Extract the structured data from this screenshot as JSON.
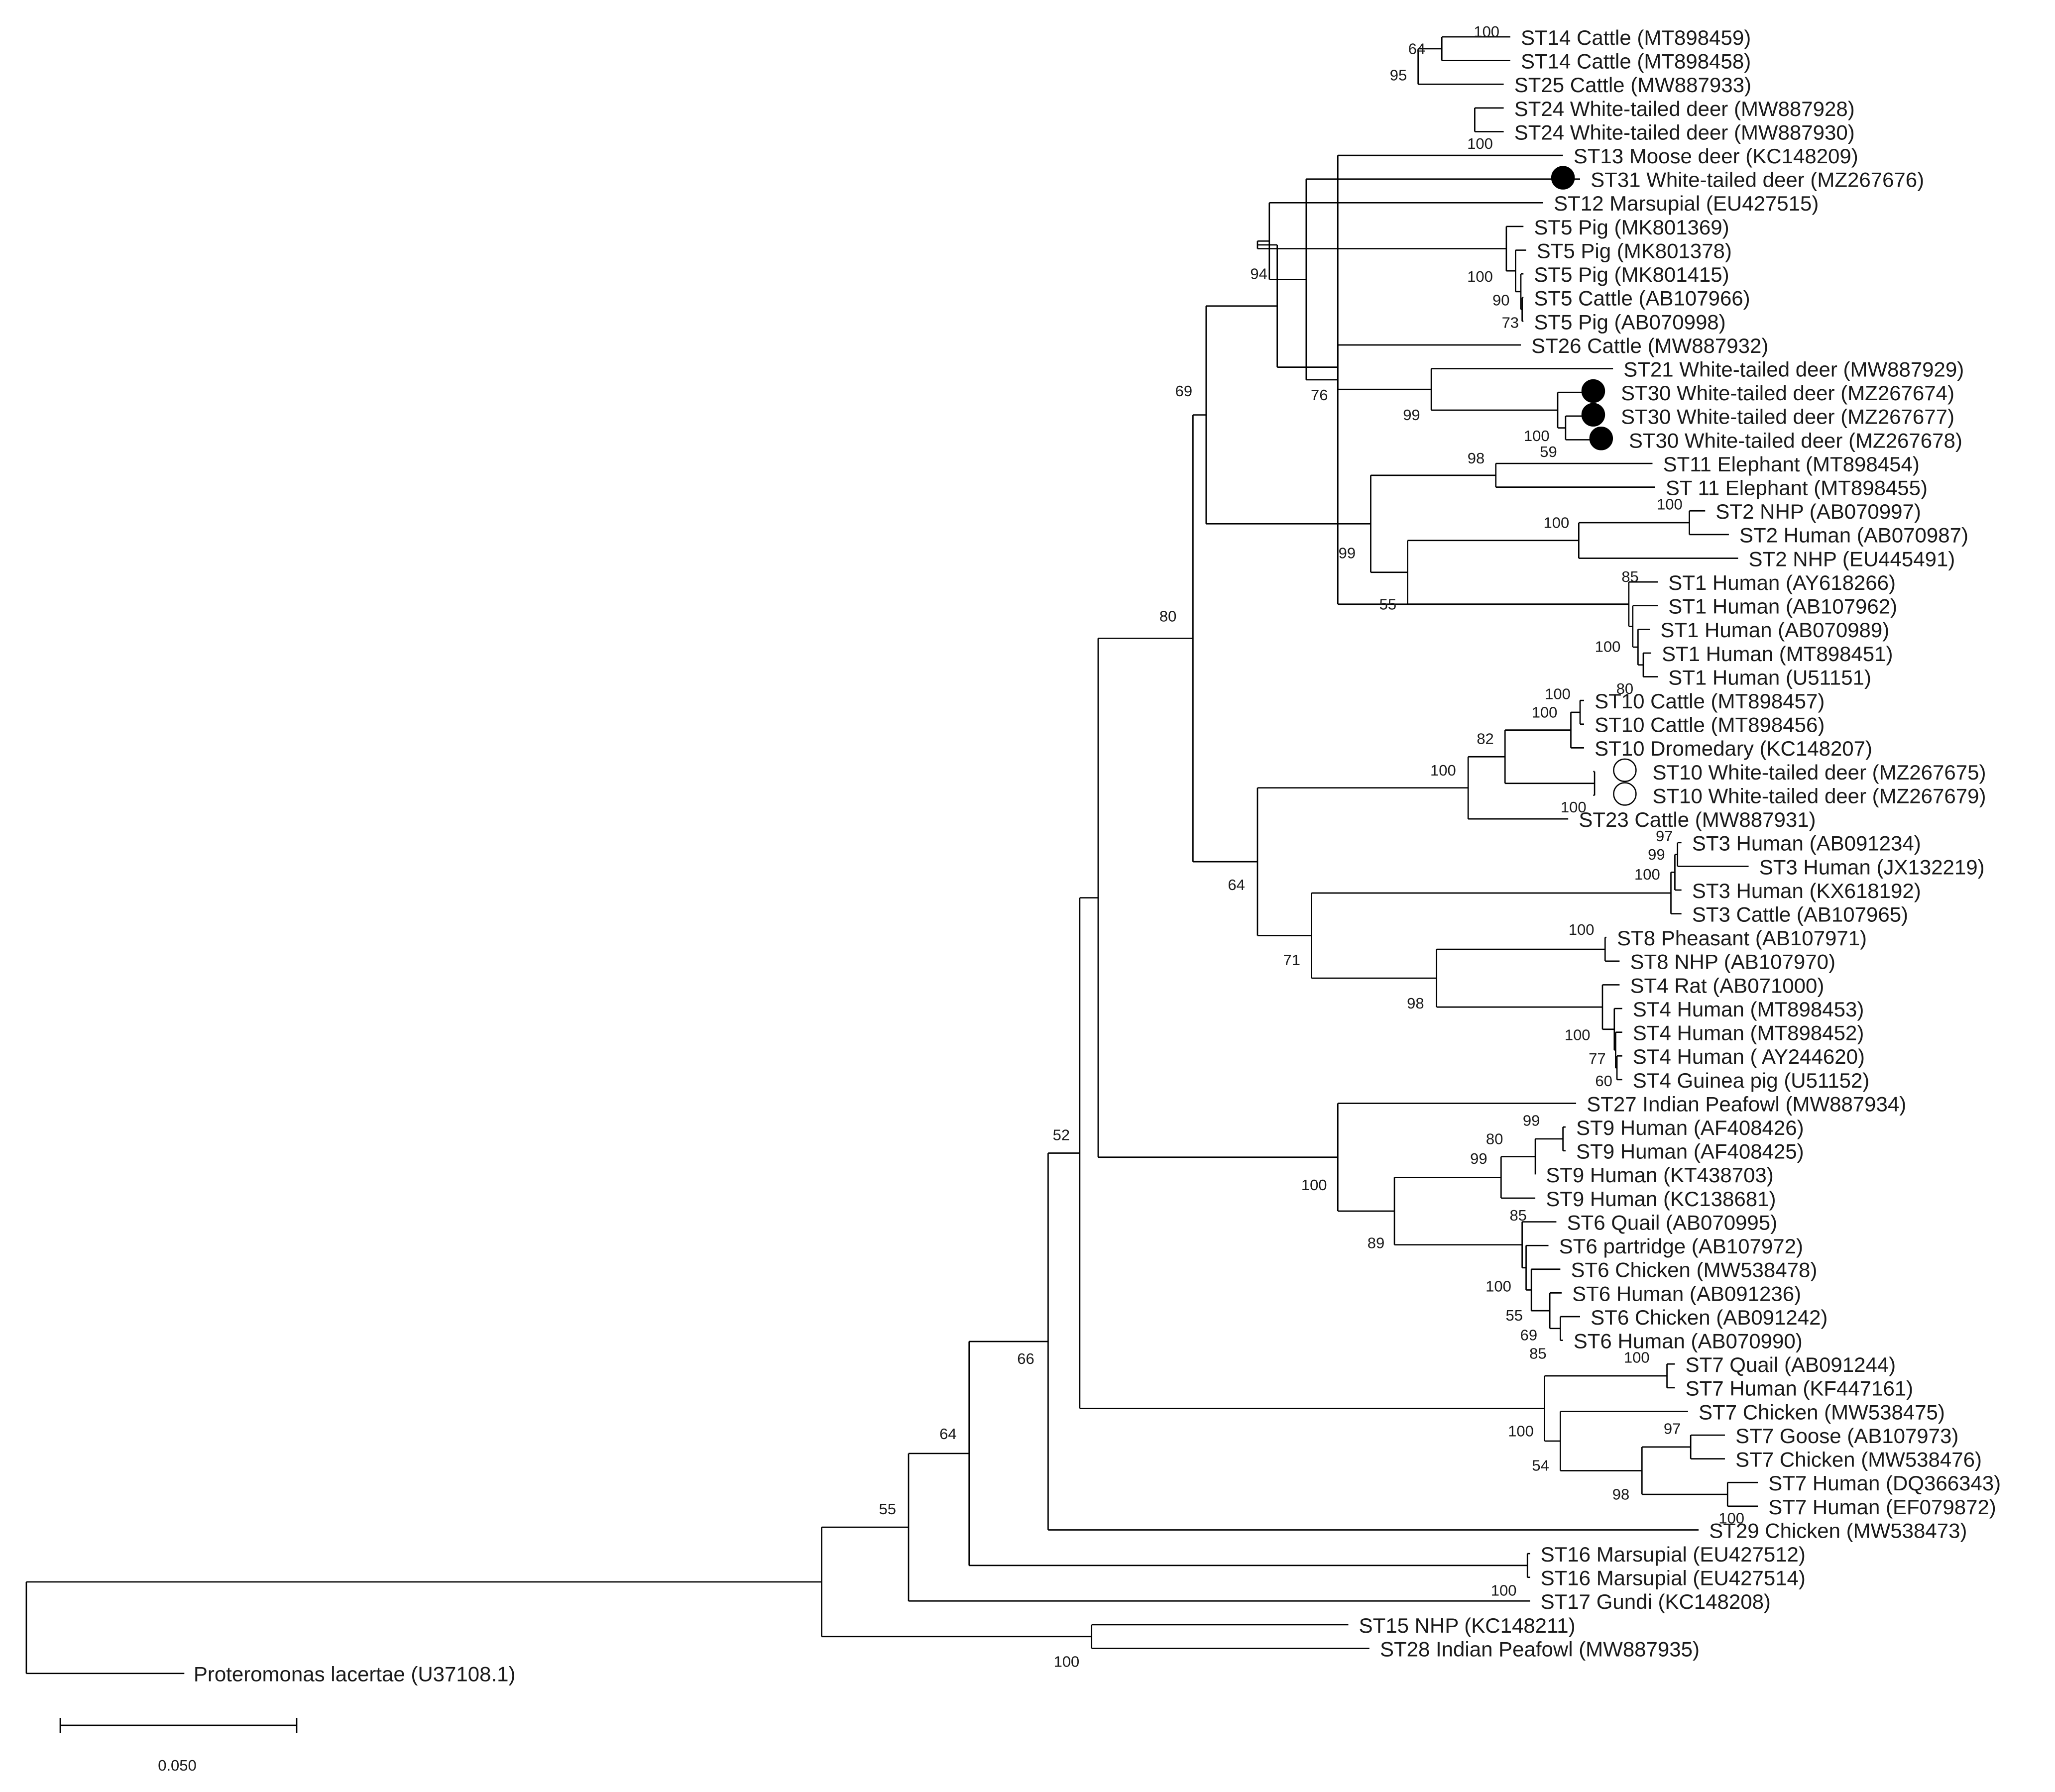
{
  "tree": {
    "leaves": [
      {
        "label": "ST14 Cattle (MT898459)"
      },
      {
        "label": "ST14 Cattle (MT898458)"
      },
      {
        "label": "ST25 Cattle (MW887933)"
      },
      {
        "label": "ST24 White-tailed deer (MW887928)"
      },
      {
        "label": "ST24 White-tailed deer (MW887930)"
      },
      {
        "label": "ST13 Moose deer (KC148209)"
      },
      {
        "label": "ST31 White-tailed deer (MZ267676)",
        "marker": "filled"
      },
      {
        "label": "ST12 Marsupial (EU427515)"
      },
      {
        "label": "ST5 Pig (MK801369)"
      },
      {
        "label": "ST5 Pig (MK801378)"
      },
      {
        "label": "ST5 Pig (MK801415)"
      },
      {
        "label": "ST5 Cattle (AB107966)"
      },
      {
        "label": "ST5 Pig (AB070998)"
      },
      {
        "label": "ST26 Cattle (MW887932)"
      },
      {
        "label": "ST21 White-tailed deer (MW887929)"
      },
      {
        "label": "ST30 White-tailed deer (MZ267674)",
        "marker": "filled"
      },
      {
        "label": "ST30 White-tailed deer (MZ267677)",
        "marker": "filled"
      },
      {
        "label": "ST30 White-tailed deer (MZ267678)",
        "marker": "filled"
      },
      {
        "label": "ST11 Elephant (MT898454)"
      },
      {
        "label": "ST 11 Elephant (MT898455)"
      },
      {
        "label": "ST2 NHP (AB070997)"
      },
      {
        "label": "ST2 Human (AB070987)"
      },
      {
        "label": "ST2 NHP (EU445491)"
      },
      {
        "label": "ST1 Human (AY618266)"
      },
      {
        "label": "ST1 Human (AB107962)"
      },
      {
        "label": "ST1 Human (AB070989)"
      },
      {
        "label": "ST1 Human (MT898451)"
      },
      {
        "label": "ST1 Human (U51151)"
      },
      {
        "label": "ST10 Cattle (MT898457)"
      },
      {
        "label": "ST10 Cattle (MT898456)"
      },
      {
        "label": "ST10 Dromedary (KC148207)"
      },
      {
        "label": "ST10 White-tailed deer (MZ267675)",
        "marker": "open"
      },
      {
        "label": "ST10 White-tailed deer (MZ267679)",
        "marker": "open"
      },
      {
        "label": "ST23 Cattle (MW887931)"
      },
      {
        "label": "ST3 Human (AB091234)"
      },
      {
        "label": "ST3 Human (JX132219)"
      },
      {
        "label": "ST3 Human (KX618192)"
      },
      {
        "label": "ST3 Cattle (AB107965)"
      },
      {
        "label": "ST8 Pheasant (AB107971)"
      },
      {
        "label": "ST8 NHP (AB107970)"
      },
      {
        "label": "ST4 Rat (AB071000)"
      },
      {
        "label": "ST4 Human (MT898453)"
      },
      {
        "label": "ST4 Human (MT898452)"
      },
      {
        "label": "ST4 Human ( AY244620)"
      },
      {
        "label": "ST4 Guinea pig (U51152)"
      },
      {
        "label": "ST27 Indian Peafowl (MW887934)"
      },
      {
        "label": "ST9 Human (AF408426)"
      },
      {
        "label": "ST9 Human (AF408425)"
      },
      {
        "label": "ST9 Human (KT438703)"
      },
      {
        "label": "ST9 Human (KC138681)"
      },
      {
        "label": "ST6 Quail (AB070995)"
      },
      {
        "label": "ST6 partridge (AB107972)"
      },
      {
        "label": "ST6 Chicken (MW538478)"
      },
      {
        "label": "ST6 Human (AB091236)"
      },
      {
        "label": "ST6 Chicken (AB091242)"
      },
      {
        "label": "ST6 Human (AB070990)"
      },
      {
        "label": "ST7 Quail (AB091244)"
      },
      {
        "label": "ST7 Human (KF447161)"
      },
      {
        "label": "ST7 Chicken (MW538475)"
      },
      {
        "label": "ST7 Goose (AB107973)"
      },
      {
        "label": "ST7 Chicken (MW538476)"
      },
      {
        "label": "ST7 Human (DQ366343)"
      },
      {
        "label": "ST7 Human (EF079872)"
      },
      {
        "label": "ST29 Chicken (MW538473)"
      },
      {
        "label": "ST16 Marsupial (EU427512)"
      },
      {
        "label": "ST16 Marsupial (EU427514)"
      },
      {
        "label": "ST17 Gundi (KC148208)"
      },
      {
        "label": "ST15 NHP (KC148211)"
      },
      {
        "label": "ST28 Indian Peafowl (MW887935)"
      },
      {
        "label": "Proteromonas lacertae (U37108.1)"
      }
    ],
    "bootstrap_values": [
      "100",
      "64",
      "95",
      "100",
      "100",
      "90",
      "73",
      "94",
      "76",
      "99",
      "100",
      "59",
      "69",
      "98",
      "100",
      "100",
      "99",
      "85",
      "100",
      "55",
      "80",
      "100",
      "100",
      "80",
      "82",
      "100",
      "100",
      "97",
      "99",
      "100",
      "64",
      "100",
      "71",
      "98",
      "100",
      "77",
      "60",
      "99",
      "80",
      "99",
      "85",
      "100",
      "89",
      "100",
      "55",
      "69",
      "85",
      "100",
      "97",
      "100",
      "54",
      "98",
      "100",
      "52",
      "66",
      "64",
      "100",
      "55",
      "100"
    ],
    "scale_bar": {
      "label": "0.050"
    },
    "marker_colors": {
      "filled": "#000000",
      "open": "#ffffff",
      "stroke": "#000000"
    }
  }
}
